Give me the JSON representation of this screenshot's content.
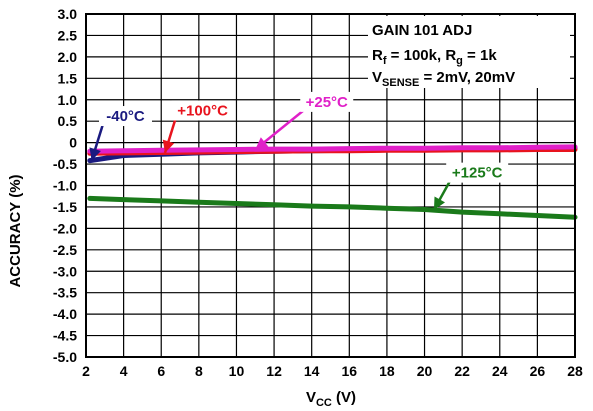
{
  "chart_data": {
    "type": "line",
    "title": "",
    "xlabel": "V",
    "xlabel_sub": "CC",
    "xlabel_unit": " (V)",
    "ylabel": "ACCURACY (%)",
    "xlim": [
      2,
      28
    ],
    "ylim": [
      -5.0,
      3.0
    ],
    "xticks": [
      "2",
      "4",
      "6",
      "8",
      "10",
      "12",
      "14",
      "16",
      "18",
      "20",
      "22",
      "24",
      "26",
      "28"
    ],
    "yticks": [
      "3.0",
      "2.5",
      "2.0",
      "1.5",
      "1.0",
      "0.5",
      "0",
      "-0.5",
      "-1.0",
      "-1.5",
      "-2.0",
      "-2.5",
      "-3.0",
      "-3.5",
      "-4.0",
      "-4.5",
      "-5.0"
    ],
    "grid": true,
    "annotation": {
      "line1": "GAIN 101 ADJ",
      "line2_a": "R",
      "line2_a_sub": "f",
      "line2_b": " = 100k, R",
      "line2_b_sub": "g",
      "line2_c": " = 1k",
      "line3_a": "V",
      "line3_a_sub": "SENSE",
      "line3_b": " = 2mV, 20mV"
    },
    "series": [
      {
        "name": "-40°C",
        "color": "#1a1a80",
        "x": [
          2.2,
          4,
          6,
          8,
          10,
          12,
          14,
          16,
          18,
          20,
          22,
          24,
          26,
          28
        ],
        "y": [
          -0.42,
          -0.3,
          -0.27,
          -0.24,
          -0.22,
          -0.2,
          -0.19,
          -0.18,
          -0.17,
          -0.16,
          -0.15,
          -0.14,
          -0.13,
          -0.12
        ]
      },
      {
        "name": "+100°C",
        "color": "#e8141e",
        "x": [
          2.2,
          4,
          6,
          8,
          10,
          12,
          14,
          16,
          18,
          20,
          22,
          24,
          26,
          28
        ],
        "y": [
          -0.25,
          -0.24,
          -0.23,
          -0.22,
          -0.21,
          -0.2,
          -0.19,
          -0.19,
          -0.18,
          -0.18,
          -0.17,
          -0.17,
          -0.16,
          -0.16
        ]
      },
      {
        "name": "+25°C",
        "color": "#e020c8",
        "x": [
          2.2,
          4,
          6,
          8,
          10,
          12,
          14,
          16,
          18,
          20,
          22,
          24,
          26,
          28
        ],
        "y": [
          -0.2,
          -0.19,
          -0.18,
          -0.17,
          -0.16,
          -0.15,
          -0.15,
          -0.14,
          -0.13,
          -0.13,
          -0.12,
          -0.12,
          -0.11,
          -0.1
        ]
      },
      {
        "name": "+125°C",
        "color": "#1a7a1a",
        "x": [
          2.2,
          4,
          6,
          8,
          10,
          12,
          14,
          16,
          18,
          20,
          22,
          24,
          26,
          28
        ],
        "y": [
          -1.3,
          -1.33,
          -1.36,
          -1.39,
          -1.42,
          -1.45,
          -1.48,
          -1.5,
          -1.53,
          -1.56,
          -1.62,
          -1.66,
          -1.7,
          -1.74
        ]
      }
    ],
    "labels": [
      {
        "series": "-40°C",
        "text": "-40°C",
        "box_x": 4.1,
        "box_y": 0.62,
        "point_x": 2.3,
        "point_y": -0.42
      },
      {
        "series": "+100°C",
        "text": "+100°C",
        "box_x": 8.2,
        "box_y": 0.75,
        "point_x": 6.2,
        "point_y": -0.24
      },
      {
        "series": "+25°C",
        "text": "+25°C",
        "box_x": 14.8,
        "box_y": 0.95,
        "point_x": 11.0,
        "point_y": -0.16
      },
      {
        "series": "+125°C",
        "text": "+125°C",
        "box_x": 22.8,
        "box_y": -0.7,
        "point_x": 20.5,
        "point_y": -1.57
      }
    ]
  }
}
